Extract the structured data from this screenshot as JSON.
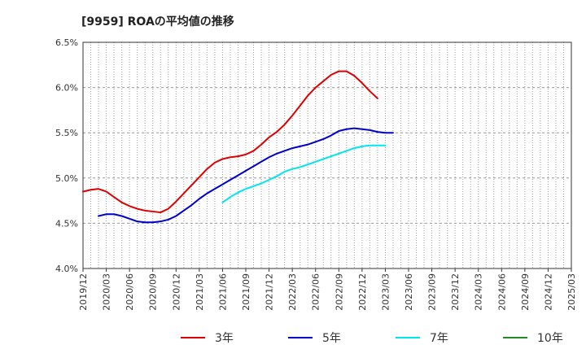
{
  "chart_data": {
    "type": "line",
    "title": "[9959]  ROAの平均値の推移",
    "xlabel": "",
    "ylabel": "",
    "ylim": [
      4.0,
      6.5
    ],
    "y_ticks": [
      "4.0%",
      "4.5%",
      "5.0%",
      "5.5%",
      "6.0%",
      "6.5%"
    ],
    "y_tick_values": [
      4.0,
      4.5,
      5.0,
      5.5,
      6.0,
      6.5
    ],
    "x_ticks": [
      "2019/12",
      "2020/03",
      "2020/06",
      "2020/09",
      "2020/12",
      "2021/03",
      "2021/06",
      "2021/09",
      "2021/12",
      "2022/03",
      "2022/06",
      "2022/09",
      "2022/12",
      "2023/03",
      "2023/06",
      "2023/09",
      "2023/12",
      "2024/03",
      "2024/06",
      "2024/09",
      "2024/12",
      "2025/03"
    ],
    "grid": true,
    "legend_position": "bottom",
    "series": [
      {
        "name": "3年",
        "color": "#dd0000",
        "start_index": 0,
        "values": [
          4.85,
          4.87,
          4.88,
          4.85,
          4.79,
          4.73,
          4.69,
          4.66,
          4.64,
          4.63,
          4.62,
          4.66,
          4.74,
          4.83,
          4.92,
          5.01,
          5.1,
          5.17,
          5.21,
          5.23,
          5.24,
          5.26,
          5.3,
          5.37,
          5.45,
          5.51,
          5.59,
          5.69,
          5.8,
          5.91,
          6.0,
          6.07,
          6.14,
          6.18,
          6.18,
          6.13,
          6.05,
          5.96,
          5.88
        ]
      },
      {
        "name": "5年",
        "color": "#0000cc",
        "start_index": 2,
        "values": [
          4.58,
          4.6,
          4.6,
          4.58,
          4.55,
          4.52,
          4.51,
          4.51,
          4.52,
          4.54,
          4.58,
          4.64,
          4.7,
          4.77,
          4.83,
          4.88,
          4.93,
          4.98,
          5.03,
          5.08,
          5.13,
          5.18,
          5.23,
          5.27,
          5.3,
          5.33,
          5.35,
          5.37,
          5.4,
          5.43,
          5.47,
          5.52,
          5.54,
          5.55,
          5.54,
          5.53,
          5.51,
          5.5,
          5.5
        ]
      },
      {
        "name": "7年",
        "color": "#00e5ee",
        "start_index": 18,
        "values": [
          4.73,
          4.79,
          4.84,
          4.88,
          4.91,
          4.94,
          4.98,
          5.02,
          5.07,
          5.1,
          5.12,
          5.15,
          5.18,
          5.21,
          5.24,
          5.27,
          5.3,
          5.33,
          5.35,
          5.36,
          5.36,
          5.36
        ]
      },
      {
        "name": "10年",
        "color": "#228b22",
        "start_index": 0,
        "values": []
      }
    ]
  }
}
